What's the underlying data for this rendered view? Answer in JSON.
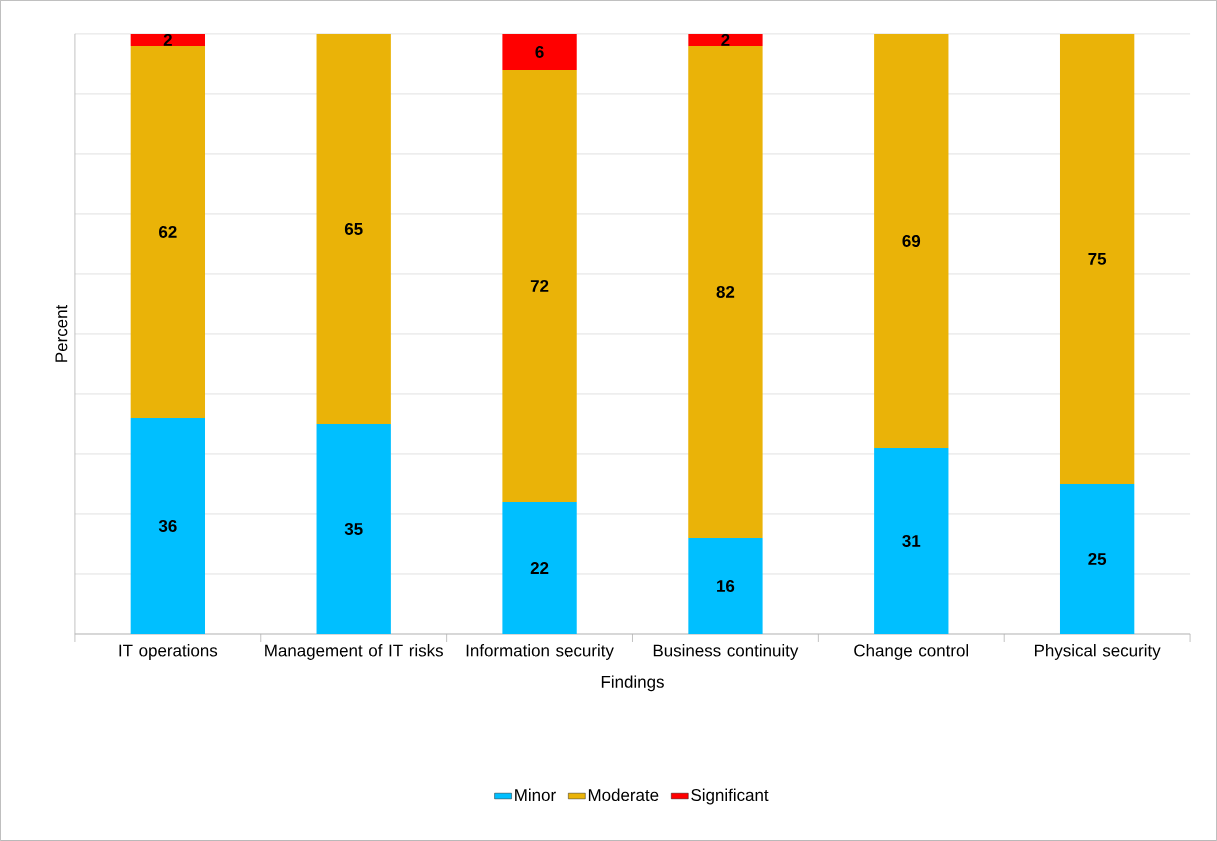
{
  "chart_data": {
    "type": "bar",
    "stacked": true,
    "xlabel": "Findings",
    "ylabel": "Percent",
    "categories": [
      "IT operations",
      "Management of IT risks",
      "Information security",
      "Business continuity",
      "Change control",
      "Physical security"
    ],
    "series": [
      {
        "name": "Minor",
        "color": "#00bfff",
        "values": [
          36,
          35,
          22,
          16,
          31,
          25
        ]
      },
      {
        "name": "Moderate",
        "color": "#eab308",
        "values": [
          62,
          65,
          72,
          82,
          69,
          75
        ]
      },
      {
        "name": "Significant",
        "color": "#ff0000",
        "values": [
          2,
          null,
          6,
          2,
          null,
          null
        ]
      }
    ],
    "ylim": [
      0,
      100
    ],
    "yticks": [
      {
        "value": 0,
        "label": null
      },
      {
        "value": 10,
        "label": null
      },
      {
        "value": 20,
        "label": null
      },
      {
        "value": 30,
        "label": null
      },
      {
        "value": 40,
        "label": null
      },
      {
        "value": 50,
        "label": null
      },
      {
        "value": 60,
        "label": null
      },
      {
        "value": 70,
        "label": null
      },
      {
        "value": 80,
        "label": null
      },
      {
        "value": 90,
        "label": null
      },
      {
        "value": 100,
        "label": null
      }
    ],
    "tick_labels": "x",
    "grid": "y",
    "data_labels": true,
    "legend": "bottom"
  }
}
